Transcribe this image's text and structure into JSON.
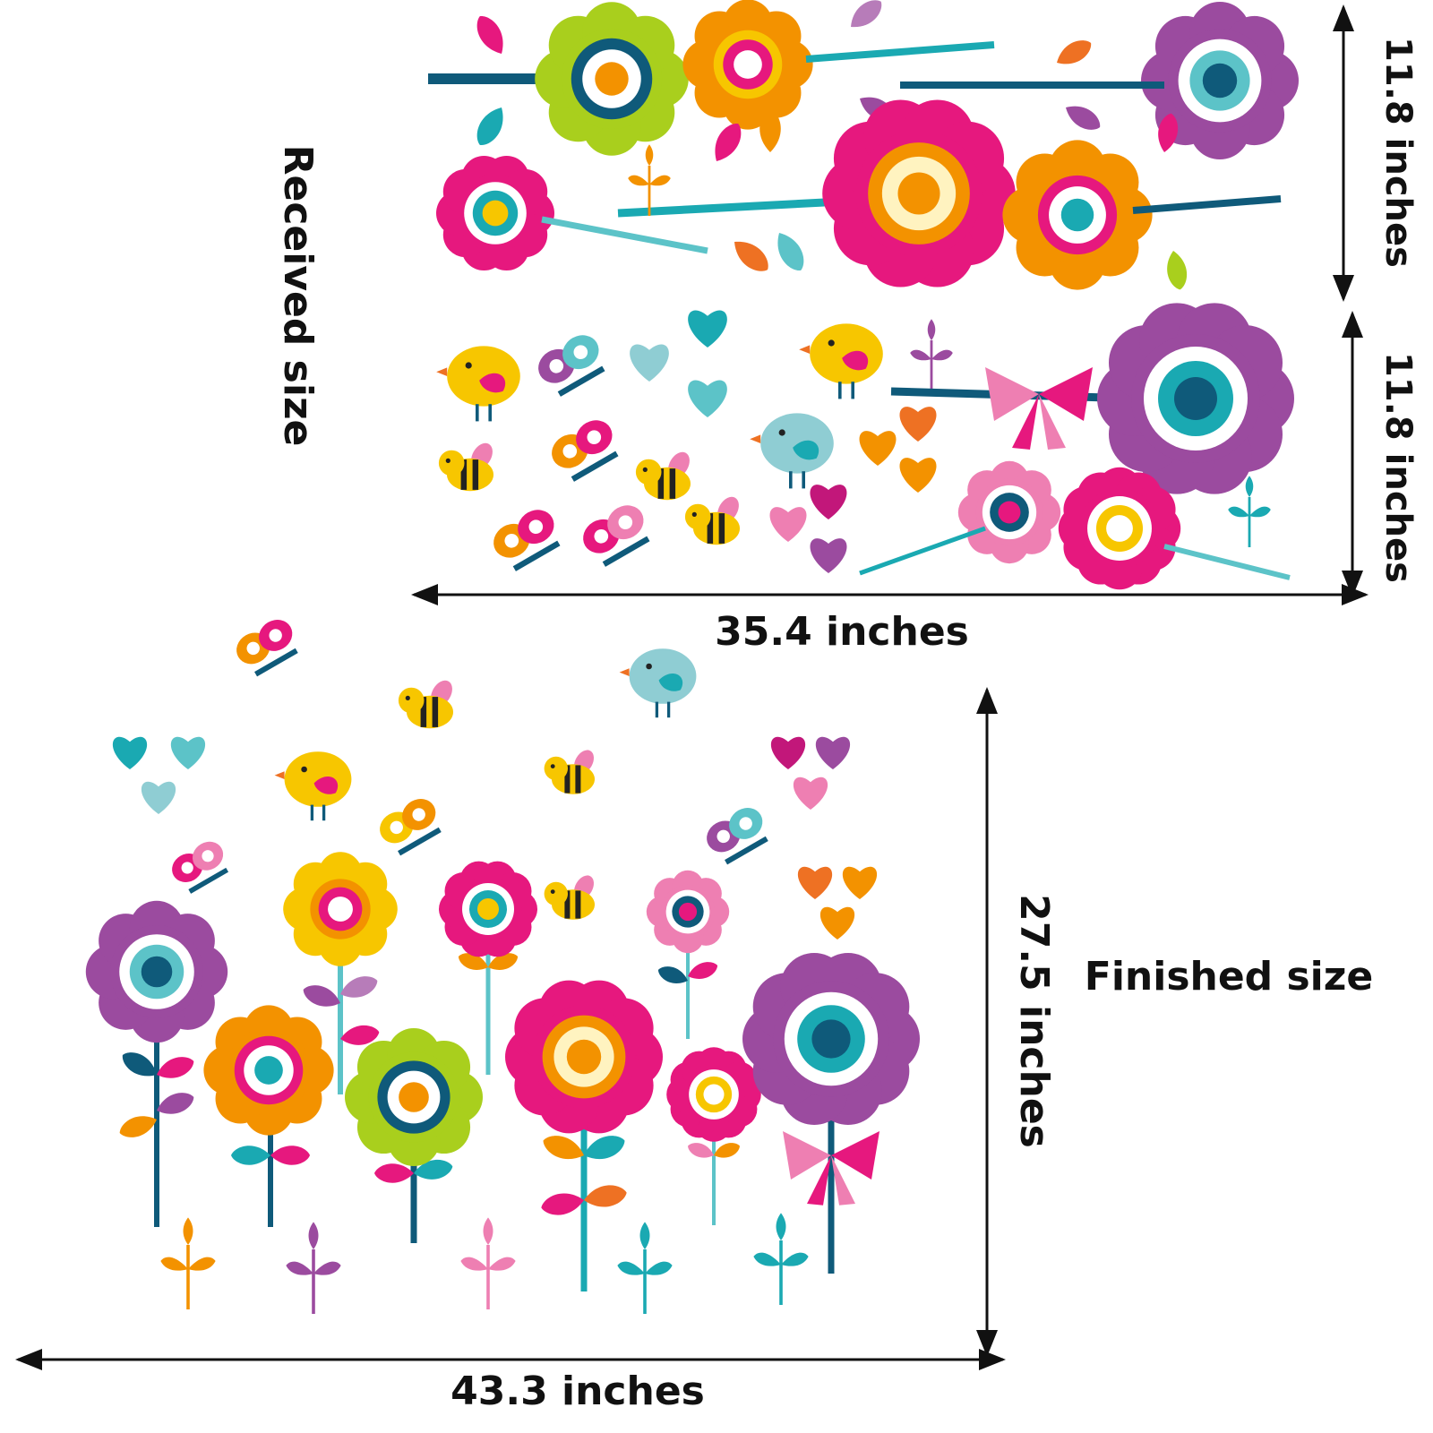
{
  "labels": {
    "received_size": "Received size",
    "finished_size": "Finished size",
    "sheet_height_top": "11.8 inches",
    "sheet_height_bottom": "11.8 inches",
    "sheet_width": "35.4 inches",
    "finished_height": "27.5 inches",
    "finished_width": "43.3 inches"
  },
  "colors": {
    "pink": "#e6187e",
    "magenta": "#c2177a",
    "orange": "#f39200",
    "dark_orange": "#ee7123",
    "yellow": "#f7c600",
    "lime": "#a9cf1d",
    "teal": "#1aa9b2",
    "light_teal": "#5cc3c8",
    "navy": "#0f5a7a",
    "purple": "#9b4b9f",
    "light_purple": "#b77cb9",
    "light_pink": "#ee7fb2",
    "light_blue": "#8fcdd3",
    "dimension_line": "#111111"
  },
  "icons": [
    "flower-icon",
    "leaf-icon",
    "heart-icon",
    "butterfly-icon",
    "bee-icon",
    "bird-icon",
    "sprout-icon",
    "bow-icon",
    "dimension-arrow-icon"
  ]
}
